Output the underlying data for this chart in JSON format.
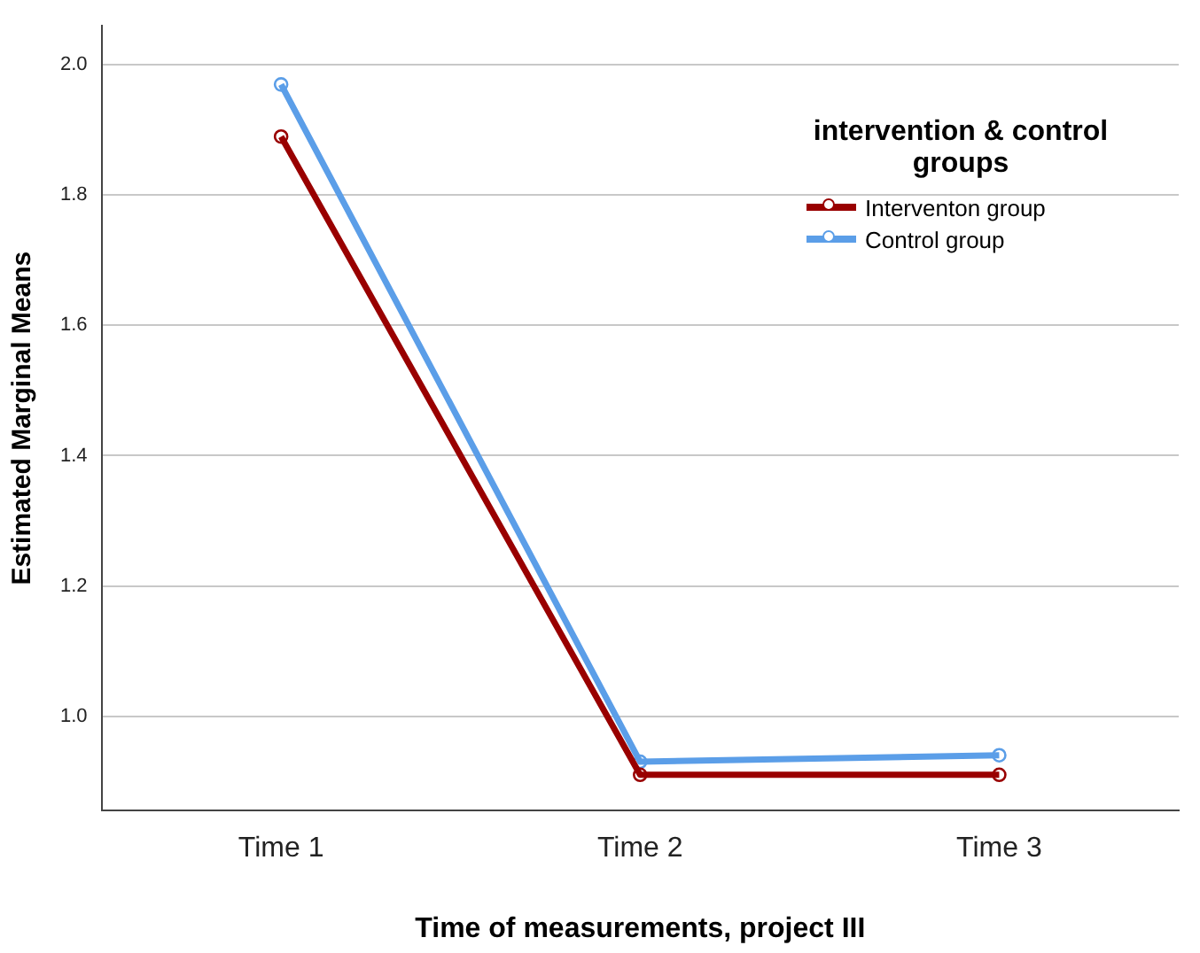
{
  "chart_data": {
    "type": "line",
    "xlabel": "Time of measurements, project III",
    "ylabel": "Estimated Marginal Means",
    "legend_title": "intervention & control groups",
    "categories": [
      "Time 1",
      "Time 2",
      "Time 3"
    ],
    "series": [
      {
        "name": "Interventon group",
        "color": "#990000",
        "values": [
          1.89,
          0.91,
          0.91
        ]
      },
      {
        "name": "Control group",
        "color": "#5b9ee8",
        "values": [
          1.97,
          0.93,
          0.94
        ]
      }
    ],
    "ylim": [
      0.855,
      2.06
    ],
    "yticks": [
      {
        "value": 1,
        "label": "1.0"
      },
      1.2,
      1.4,
      1.6,
      1.8,
      {
        "value": 2,
        "label": "2.0"
      }
    ],
    "grid": "y",
    "legend": "top right",
    "marker": "circle",
    "line_style": "solid"
  }
}
